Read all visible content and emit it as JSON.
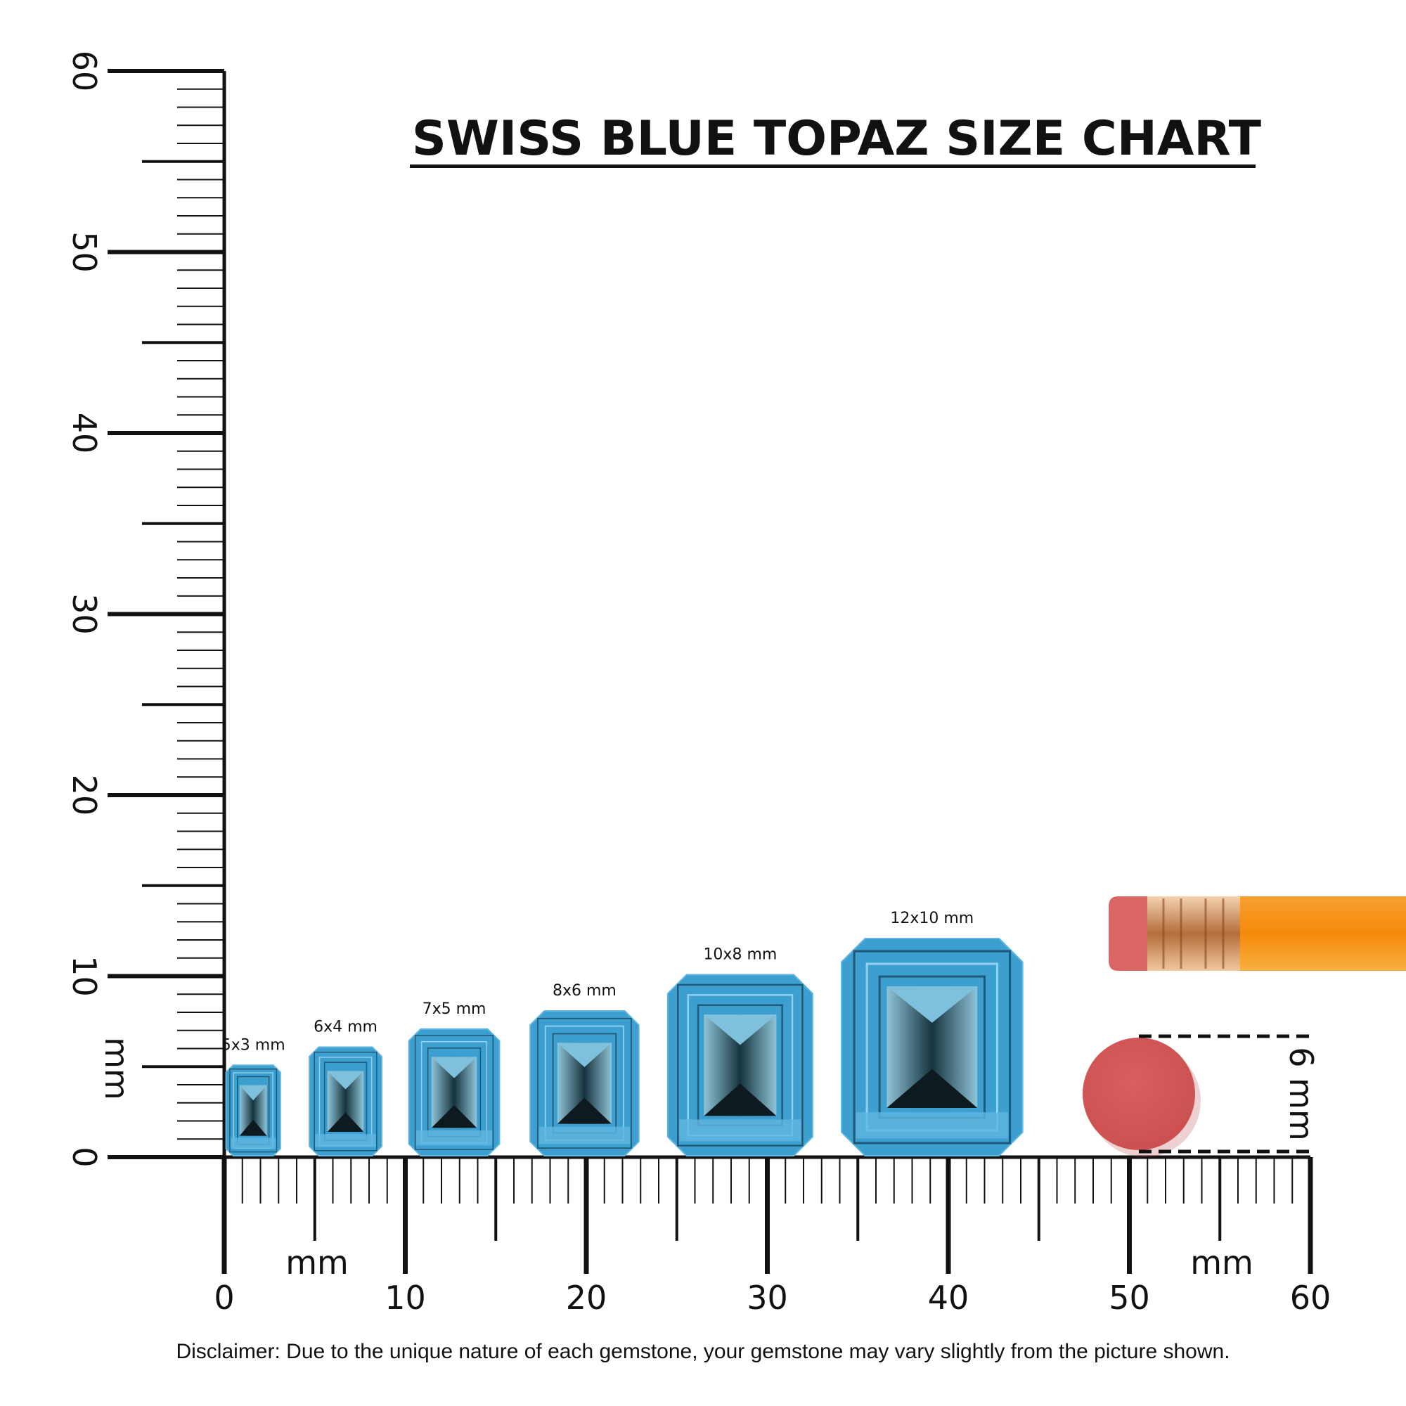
{
  "title": "SWISS BLUE TOPAZ SIZE CHART",
  "disclaimer": "Disclaimer: Due to the unique nature of each gemstone, your gemstone may vary slightly from the picture shown.",
  "unit_label": "mm",
  "ruler": {
    "range_mm": [
      0,
      60
    ],
    "tick_labels": [
      "0",
      "10",
      "20",
      "30",
      "40",
      "50",
      "60"
    ]
  },
  "gems": [
    {
      "label": "5x3 mm",
      "length_mm": 5,
      "width_mm": 3
    },
    {
      "label": "6x4 mm",
      "length_mm": 6,
      "width_mm": 4
    },
    {
      "label": "7x5 mm",
      "length_mm": 7,
      "width_mm": 5
    },
    {
      "label": "8x6 mm",
      "length_mm": 8,
      "width_mm": 6
    },
    {
      "label": "10x8 mm",
      "length_mm": 10,
      "width_mm": 8
    },
    {
      "label": "12x10 mm",
      "length_mm": 12,
      "width_mm": 10
    }
  ],
  "eraser_reference": {
    "label": "6 mm",
    "diameter_mm": 6
  },
  "colors": {
    "gem": "#3d9fd0",
    "gem_dark": "#1f4e63",
    "eraser": "#d95b5b",
    "pencil": "#f5900f",
    "ferrule": "#d9a06a"
  }
}
